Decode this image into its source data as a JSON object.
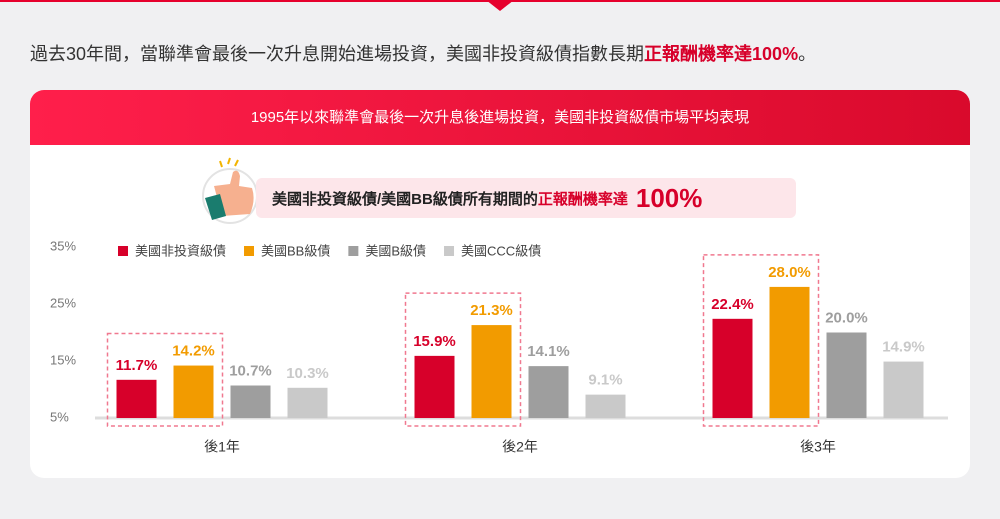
{
  "header": {
    "headline_prefix": "過去30年間，當聯準會最後一次升息開始進場投資，美國非投資級債指數長期",
    "headline_highlight": "正報酬機率達100%",
    "headline_suffix": "。"
  },
  "card": {
    "title": "1995年以來聯準會最後一次升息後進場投資，美國非投資級債市場平均表現"
  },
  "banner": {
    "text": "美國非投資級債/美國BB級債所有期間的",
    "highlight": "正報酬機率達",
    "big": "100%"
  },
  "chart_data": {
    "type": "bar",
    "categories": [
      "後1年",
      "後2年",
      "後3年"
    ],
    "series": [
      {
        "name": "美國非投資級債",
        "color": "#d7002a",
        "values": [
          11.7,
          15.9,
          22.4
        ],
        "value_labels": [
          "11.7%",
          "15.9%",
          "22.4%"
        ]
      },
      {
        "name": "美國BB級債",
        "color": "#f29b00",
        "values": [
          14.2,
          21.3,
          28.0
        ],
        "value_labels": [
          "14.2%",
          "21.3%",
          "28.0%"
        ]
      },
      {
        "name": "美國B級債",
        "color": "#9e9e9e",
        "values": [
          10.7,
          14.1,
          20.0
        ],
        "value_labels": [
          "10.7%",
          "14.1%",
          "20.0%"
        ]
      },
      {
        "name": "美國CCC級債",
        "color": "#c9c9c9",
        "values": [
          10.3,
          9.1,
          14.9
        ],
        "value_labels": [
          "10.3%",
          "9.1%",
          "14.9%"
        ]
      }
    ],
    "ylim": [
      5,
      35
    ],
    "yticks": [
      {
        "value": 5,
        "label": "5%"
      },
      {
        "value": 15,
        "label": "15%"
      },
      {
        "value": 25,
        "label": "25%"
      },
      {
        "value": 35,
        "label": "35%"
      }
    ]
  }
}
